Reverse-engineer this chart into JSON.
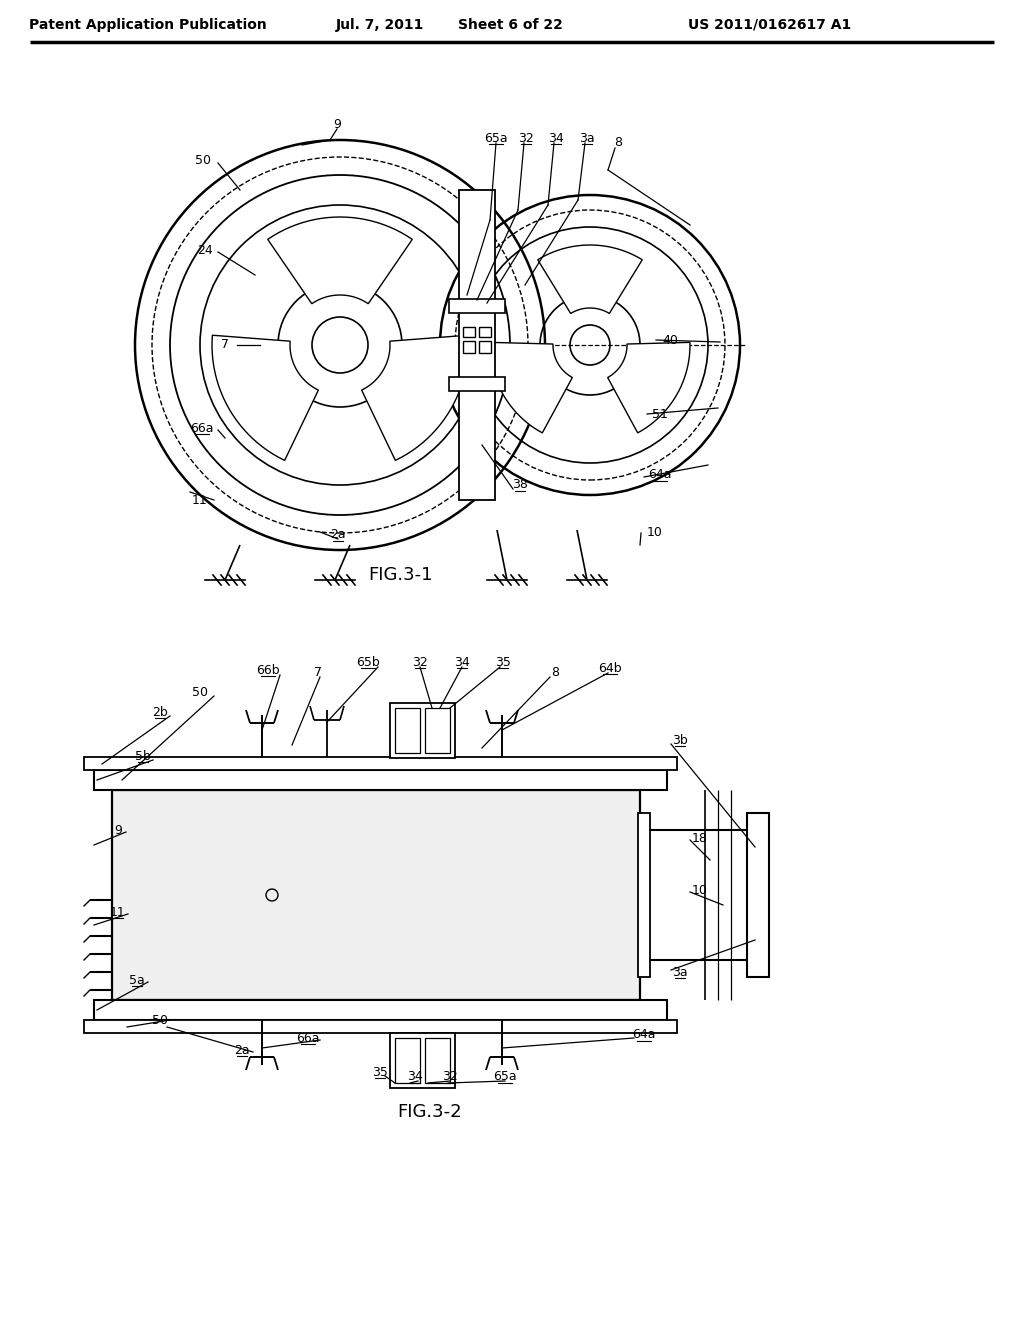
{
  "bg": "#ffffff",
  "header_left": "Patent Application Publication",
  "header_mid1": "Jul. 7, 2011",
  "header_mid2": "Sheet 6 of 22",
  "header_right": "US 2011/0162617 A1"
}
